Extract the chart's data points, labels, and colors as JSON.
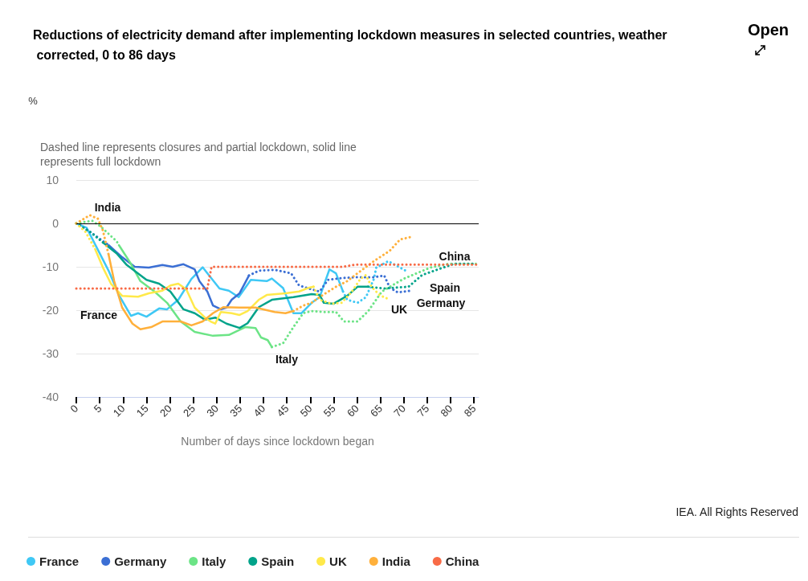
{
  "chart_data": {
    "type": "line",
    "title": "Reductions of electricity demand after implementing lockdown measures in selected countries, weather corrected, 0 to 86 days",
    "subtitle": "Dashed line represents closures and partial lockdown, solid line represents full lockdown",
    "xlabel": "Number of days since lockdown began",
    "xlim": [
      0,
      86
    ],
    "xticks": [
      0,
      5,
      10,
      15,
      20,
      25,
      30,
      35,
      40,
      45,
      50,
      55,
      60,
      65,
      70,
      75,
      80,
      85
    ],
    "ylim": [
      -40,
      10
    ],
    "yticks": [
      -40,
      -30,
      -20,
      -10,
      0,
      10
    ],
    "grid": "y",
    "legend": "bottom",
    "marker": "none",
    "ref_lines": [
      {
        "axis": "y",
        "value": 0,
        "color": "#000000"
      }
    ],
    "annotations": [
      "Open",
      "IEA. All Rights Reserved",
      "%",
      "India",
      "France",
      "Italy",
      "UK",
      "Germany",
      "Spain",
      "China"
    ],
    "series": [
      {
        "name": "France",
        "color": "#3fc8f5",
        "line_style": "solid",
        "x": [
          0,
          2.2,
          6.9,
          9.1,
          11.7,
          13.2,
          15,
          17.7,
          19.4,
          21.8,
          24.6,
          27,
          30.6,
          32.6,
          34.7,
          37.3,
          40.7,
          41.8,
          44.2,
          46.4,
          48.1,
          50.3,
          52,
          54.1,
          55.5,
          57
        ],
        "values": [
          0,
          -1,
          -10.9,
          -16.5,
          -21.3,
          -20.7,
          -21.5,
          -19.6,
          -19.8,
          -17.6,
          -12.8,
          -10.1,
          -15,
          -15.5,
          -17,
          -13,
          -13.3,
          -12.7,
          -14.9,
          -20.7,
          -20.7,
          -18.3,
          -17,
          -10.6,
          -11.5,
          -15.7
        ]
      },
      {
        "color": "#3fc8f5",
        "line_style": "dotted",
        "x": [
          57,
          57.9,
          60.1,
          61.9,
          63.6,
          64.1,
          66.7,
          68.2,
          70.4
        ],
        "values": [
          -15.7,
          -17.6,
          -18.3,
          -17,
          -12.8,
          -10.2,
          -8.7,
          -9.6,
          -10.9
        ]
      },
      {
        "name": "Germany",
        "color": "#3b6fd4",
        "line_style": "solid",
        "x": [
          6.9,
          9.8,
          12.5,
          15.5,
          18.4,
          20.6,
          22.9,
          25.3,
          26.3,
          28,
          29.2,
          30.9,
          32.1,
          33.2,
          34.9,
          36.9
        ],
        "values": [
          -5,
          -7.8,
          -10,
          -10.2,
          -9.6,
          -10,
          -9.4,
          -10.6,
          -13.3,
          -15.7,
          -18.9,
          -19.8,
          -19.4,
          -17.6,
          -16.1,
          -12
        ]
      },
      {
        "color": "#3b6fd4",
        "line_style": "dotted",
        "x": [
          0,
          3,
          6.9
        ],
        "values": [
          0,
          -2,
          -5
        ]
      },
      {
        "color": "#3b6fd4",
        "line_style": "dotted",
        "x": [
          36.9,
          39,
          42.4,
          45.9,
          47.6,
          50.3,
          52,
          53.8,
          56.7,
          60.1,
          63.6,
          65.8,
          67,
          68.7,
          71.6
        ],
        "values": [
          -12,
          -10.9,
          -10.7,
          -11.5,
          -14.3,
          -15.2,
          -15.7,
          -13,
          -12.6,
          -12.4,
          -12.4,
          -12,
          -14.8,
          -15.9,
          -15.5
        ]
      },
      {
        "name": "Italy",
        "color": "#6ce486",
        "line_style": "solid",
        "x": [
          9.1,
          11.5,
          13.7,
          16.7,
          19.4,
          22.3,
          25.3,
          29.2,
          32.6,
          36.1,
          38.3,
          39.5,
          40.9,
          41.8
        ],
        "values": [
          -5,
          -9,
          -13.3,
          -15.7,
          -18.3,
          -22.6,
          -25,
          -25.9,
          -25.7,
          -23.9,
          -24.1,
          -26.3,
          -26.9,
          -28.5
        ]
      },
      {
        "color": "#6ce486",
        "line_style": "dotted",
        "x": [
          0,
          3.4,
          5.2,
          8.6,
          9.1
        ],
        "values": [
          0,
          0.6,
          -0.7,
          -4.1,
          -5
        ]
      },
      {
        "color": "#6ce486",
        "line_style": "dotted",
        "x": [
          41.8,
          44.2,
          46.4,
          48.5,
          50.3,
          52.7,
          55.5,
          57.2,
          60.1,
          62.4,
          65.3,
          69.9,
          75.6,
          79.6,
          85.4
        ],
        "values": [
          -28.5,
          -27.6,
          -23.9,
          -20.7,
          -20.2,
          -20.4,
          -20.4,
          -22.6,
          -22.6,
          -20.2,
          -15.7,
          -12.8,
          -10.2,
          -9.3,
          -9.3
        ]
      },
      {
        "name": "Spain",
        "color": "#00a38a",
        "line_style": "solid",
        "x": [
          5.7,
          8.6,
          10.8,
          15,
          17.7,
          20.1,
          22.9,
          25.3,
          27.5,
          29.7,
          32.1,
          34.9,
          36.6,
          39,
          41.8,
          46.4,
          50.3,
          52,
          52.9,
          55,
          57.9,
          60.1,
          62.4
        ],
        "values": [
          -4.4,
          -6.9,
          -9.6,
          -13,
          -13.9,
          -15.7,
          -19.8,
          -20.7,
          -22.2,
          -21.7,
          -23.1,
          -24.1,
          -23,
          -19.3,
          -17.6,
          -17,
          -16.3,
          -16.5,
          -18.3,
          -18.5,
          -16.7,
          -14.6,
          -14.6
        ]
      },
      {
        "color": "#00a38a",
        "line_style": "dotted",
        "x": [
          0,
          3,
          5.7
        ],
        "values": [
          0,
          -2,
          -4.4
        ]
      },
      {
        "color": "#00a38a",
        "line_style": "dotted",
        "x": [
          62.4,
          65.8,
          68.2,
          71,
          73.9,
          77.3,
          80.8,
          85.4
        ],
        "values": [
          -14.6,
          -15,
          -14.8,
          -14.6,
          -11.9,
          -10.6,
          -9.3,
          -9.3
        ]
      },
      {
        "name": "UK",
        "color": "#ffe94a",
        "line_style": "solid",
        "x": [
          4,
          5.7,
          7.4,
          9.8,
          13.2,
          15.5,
          18.4,
          20.1,
          21.8,
          23.5,
          25.3,
          27.5,
          28.7,
          29.7,
          30.9,
          33.2,
          34.9,
          36.6,
          39,
          40.7,
          44.7,
          47.6,
          49.8,
          50.7
        ],
        "values": [
          -5.9,
          -10.2,
          -13.9,
          -16.7,
          -16.9,
          -16.1,
          -15.5,
          -14.3,
          -13.9,
          -15.2,
          -19.4,
          -21.7,
          -22.6,
          -23.1,
          -20.4,
          -20.7,
          -21.1,
          -20.2,
          -17.6,
          -16.5,
          -16.1,
          -15.7,
          -14.8,
          -14.6
        ]
      },
      {
        "color": "#ffe94a",
        "line_style": "dotted",
        "x": [
          0,
          2,
          4
        ],
        "values": [
          0,
          -2,
          -5.9
        ]
      },
      {
        "color": "#ffe94a",
        "line_style": "dotted",
        "x": [
          50.7,
          52,
          54.5,
          56.7,
          58.9,
          60.7,
          61.9,
          63.1,
          64.8,
          67
        ],
        "values": [
          -14.6,
          -17.6,
          -18.5,
          -18.3,
          -15.7,
          -12.8,
          -11.9,
          -14.6,
          -16.5,
          -17.6
        ]
      },
      {
        "name": "India",
        "color": "#ffb03b",
        "line_style": "solid",
        "x": [
          6.9,
          8.1,
          9.8,
          12,
          13.7,
          16,
          18.4,
          22.3,
          24.6,
          27,
          29.2,
          31.4,
          34.9,
          38.3,
          42.4,
          44.7,
          46.4
        ],
        "values": [
          -7.2,
          -13.3,
          -19.4,
          -23.1,
          -24.4,
          -23.9,
          -22.6,
          -22.6,
          -23.5,
          -22.6,
          -20.7,
          -19.3,
          -19.4,
          -19.4,
          -20.4,
          -20.7,
          -20.2
        ]
      },
      {
        "color": "#ffb03b",
        "line_style": "dotted",
        "x": [
          0,
          2.9,
          4.6,
          5.7,
          6.9
        ],
        "values": [
          0,
          1.9,
          1.1,
          -1.7,
          -7.2
        ]
      },
      {
        "color": "#ffb03b",
        "line_style": "dotted",
        "x": [
          46.4,
          48.6,
          50.3,
          52.7,
          55.5,
          57.9,
          60.1,
          63.6,
          67,
          69.2,
          71.6
        ],
        "values": [
          -20.2,
          -18.9,
          -18.3,
          -16.5,
          -14.6,
          -13.3,
          -11.5,
          -8.7,
          -6.3,
          -3.7,
          -3.1
        ]
      },
      {
        "name": "China",
        "color": "#f86b47",
        "line_style": "dotted",
        "x": [
          0,
          28,
          28.9,
          57,
          59.6,
          86
        ],
        "values": [
          -15,
          -15,
          -10,
          -10,
          -9.5,
          -9.5
        ]
      }
    ]
  }
}
